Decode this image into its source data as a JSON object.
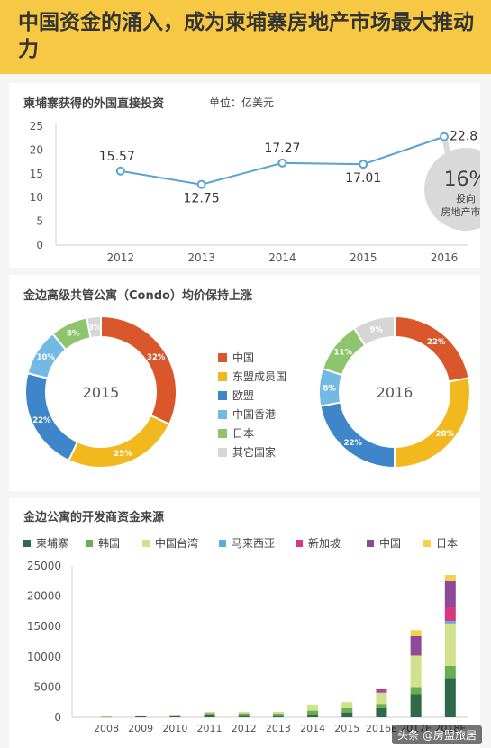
{
  "header": {
    "title": "中国资金的涌入，成为柬埔寨房地产市场最大推动力"
  },
  "section1": {
    "title": "柬埔寨获得的外国直接投资",
    "unit": "单位：亿美元"
  },
  "section2": {
    "title": "金边高级共管公寓（Condo）均价保持上涨"
  },
  "section3": {
    "title": "金边公寓的开发商资金来源"
  },
  "callout": {
    "percent": "16%",
    "line1": "投向",
    "line2": "房地产市场"
  },
  "watermark": "头条 @房盟旅居",
  "colors": {
    "accent": "#f7c843",
    "line": "#5ba3d0"
  },
  "chart_data": [
    {
      "type": "line",
      "title": "柬埔寨获得的外国直接投资",
      "unit": "单位：亿美元",
      "x": [
        "2012",
        "2013",
        "2014",
        "2015",
        "2016"
      ],
      "values": [
        15.57,
        12.75,
        17.27,
        17.01,
        22.8
      ],
      "labels": [
        "15.57",
        "12.75",
        "17.27",
        "17.01",
        "22.8"
      ],
      "ylim": [
        0,
        25
      ],
      "yticks": [
        0,
        5,
        10,
        15,
        20,
        25
      ],
      "grid": false
    },
    {
      "type": "pie",
      "title": "金边高级共管公寓（Condo）均价保持上涨",
      "legend": [
        {
          "name": "中国",
          "color": "#d9572b"
        },
        {
          "name": "东盟成员国",
          "color": "#f2b91e"
        },
        {
          "name": "欧盟",
          "color": "#3e86c9"
        },
        {
          "name": "中国香港",
          "color": "#72b9e4"
        },
        {
          "name": "日本",
          "color": "#8cc56b"
        },
        {
          "name": "其它国家",
          "color": "#d6d6d6"
        }
      ],
      "charts": [
        {
          "label": "2015",
          "values": [
            32,
            25,
            22,
            10,
            8,
            3
          ]
        },
        {
          "label": "2016",
          "values": [
            22,
            28,
            22,
            8,
            11,
            9
          ]
        }
      ]
    },
    {
      "type": "bar",
      "stacked": true,
      "title": "金边公寓的开发商资金来源",
      "categories": [
        "2008",
        "2009",
        "2010",
        "2011",
        "2012",
        "2013",
        "2014",
        "2015",
        "2016E",
        "2017E",
        "2018E"
      ],
      "ylim": [
        0,
        25000
      ],
      "yticks": [
        0,
        5000,
        10000,
        15000,
        20000,
        25000
      ],
      "series": [
        {
          "name": "柬埔寨",
          "color": "#2e6a4a",
          "values": [
            60,
            150,
            200,
            450,
            400,
            350,
            500,
            800,
            1500,
            3800,
            6500
          ]
        },
        {
          "name": "韩国",
          "color": "#6aae52",
          "values": [
            40,
            100,
            150,
            250,
            250,
            250,
            600,
            700,
            700,
            1200,
            2000
          ]
        },
        {
          "name": "中国台湾",
          "color": "#d2e28c",
          "values": [
            30,
            80,
            100,
            200,
            250,
            300,
            1000,
            1000,
            1800,
            5200,
            7000
          ]
        },
        {
          "name": "马来西亚",
          "color": "#5aaedf",
          "values": [
            0,
            0,
            0,
            0,
            0,
            0,
            0,
            0,
            100,
            0,
            400
          ]
        },
        {
          "name": "新加坡",
          "color": "#d8387e",
          "values": [
            0,
            0,
            0,
            0,
            0,
            0,
            0,
            0,
            300,
            0,
            2400
          ]
        },
        {
          "name": "中国",
          "color": "#8e4a98",
          "values": [
            0,
            0,
            0,
            0,
            0,
            0,
            0,
            0,
            300,
            3200,
            4200
          ]
        },
        {
          "name": "日本",
          "color": "#f6d04d",
          "values": [
            0,
            0,
            0,
            0,
            0,
            0,
            0,
            0,
            100,
            1000,
            1000
          ]
        }
      ]
    }
  ]
}
